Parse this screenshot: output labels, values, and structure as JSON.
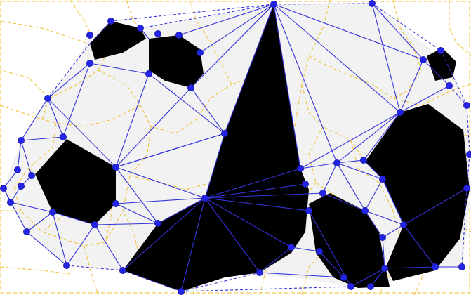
{
  "colors": {
    "background": "#ffffff",
    "free_region": "#f2f2f3",
    "obstacle": "#000000",
    "graph_edge": "#3333d9",
    "node": "#2424e6",
    "voronoi": "#f0c030"
  },
  "icons": [
    "node-dot",
    "obstacle-polygon",
    "graph-edge",
    "voronoi-edge"
  ]
}
